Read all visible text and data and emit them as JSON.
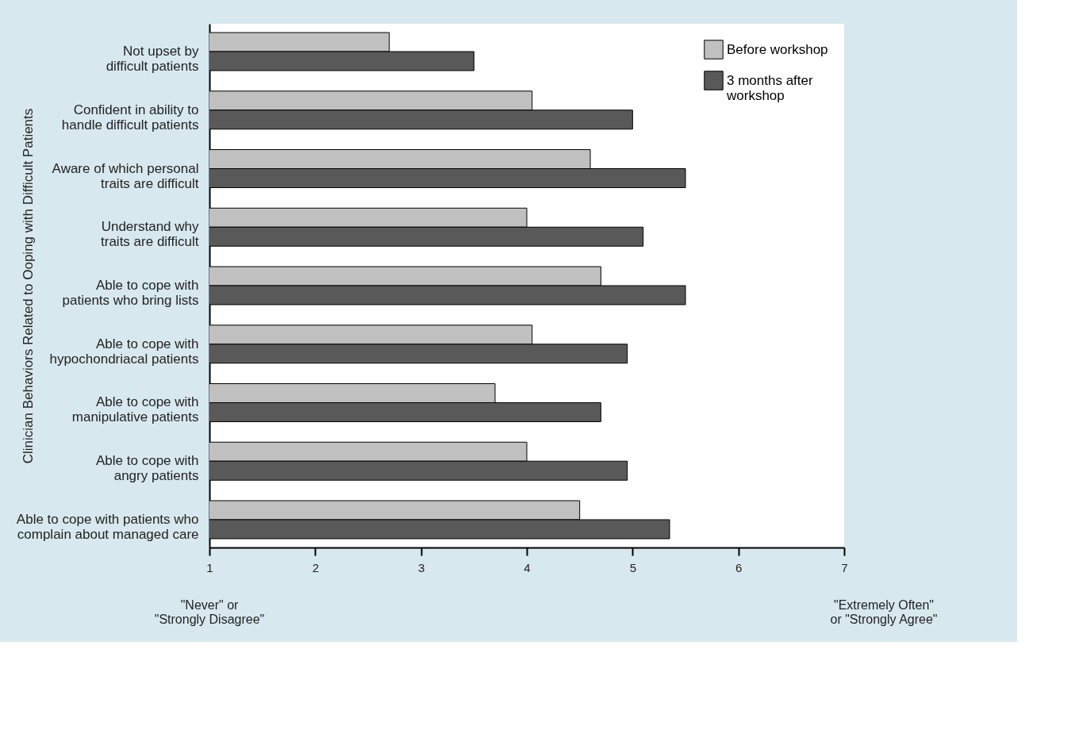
{
  "chart_data": {
    "type": "bar",
    "orientation": "horizontal",
    "ylabel": "Clinician Behaviors Related to Ooping with Difficult Patients",
    "categories": [
      "Not upset by\ndifficult patients",
      "Confident in ability to\nhandle difficult patients",
      "Aware of which personal\ntraits are difficult",
      "Understand why\ntraits are difficult",
      "Able to cope with\npatients who bring lists",
      "Able to cope with\nhypochondriacal patients",
      "Able to cope with\nmanipulative patients",
      "Able to cope with\nangry patients",
      "Able to cope with patients who\ncomplain about managed care"
    ],
    "series": [
      {
        "name": "Before workshop",
        "color": "#c0c0c0",
        "values": [
          2.7,
          4.05,
          4.6,
          4.0,
          4.7,
          4.05,
          3.7,
          4.0,
          4.5
        ]
      },
      {
        "name": "3 months after\nworkshop",
        "color": "#595959",
        "values": [
          3.5,
          5.0,
          5.5,
          5.1,
          5.5,
          4.95,
          4.7,
          4.95,
          5.35
        ]
      }
    ],
    "xlim": [
      1,
      7
    ],
    "xticks": [
      1,
      2,
      3,
      4,
      5,
      6,
      7
    ],
    "legend": "top right",
    "annotations": [
      "\"Never\" or\n\"Strongly Disagree\"",
      "\"Extremely Often\"\nor \"Strongly Agree\""
    ]
  }
}
